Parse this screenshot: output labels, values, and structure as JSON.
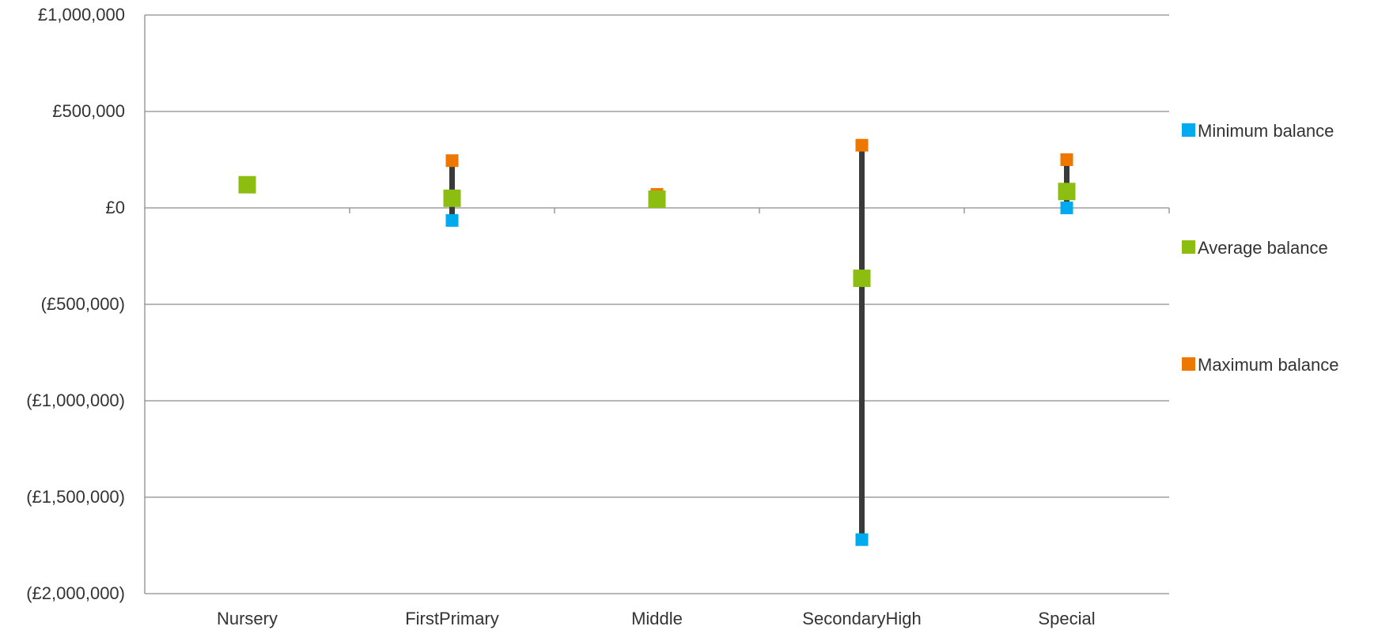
{
  "chart_data": {
    "type": "scatter",
    "title": "",
    "xlabel": "",
    "ylabel": "",
    "categories": [
      "Nursery",
      "FirstPrimary",
      "Middle",
      "SecondaryHigh",
      "Special"
    ],
    "ylim": [
      -2000000,
      1000000
    ],
    "yticks": [
      1000000,
      500000,
      0,
      -500000,
      -1000000,
      -1500000,
      -2000000
    ],
    "ytick_labels": [
      "£1,000,000",
      "£500,000",
      "£0",
      "(£500,000)",
      "(£1,000,000)",
      "(£1,500,000)",
      "(£2,000,000)"
    ],
    "grid": "horizontal",
    "legend_position": "right",
    "range_bars": true,
    "series": [
      {
        "name": "Minimum balance",
        "color": "#00aaee",
        "values": [
          120000,
          -65000,
          45000,
          -1720000,
          0
        ]
      },
      {
        "name": "Average balance",
        "color": "#8cbd11",
        "values": [
          120000,
          50000,
          45000,
          -365000,
          85000
        ]
      },
      {
        "name": "Maximum balance",
        "color": "#ee7700",
        "values": [
          120000,
          245000,
          70000,
          325000,
          250000
        ]
      }
    ]
  }
}
